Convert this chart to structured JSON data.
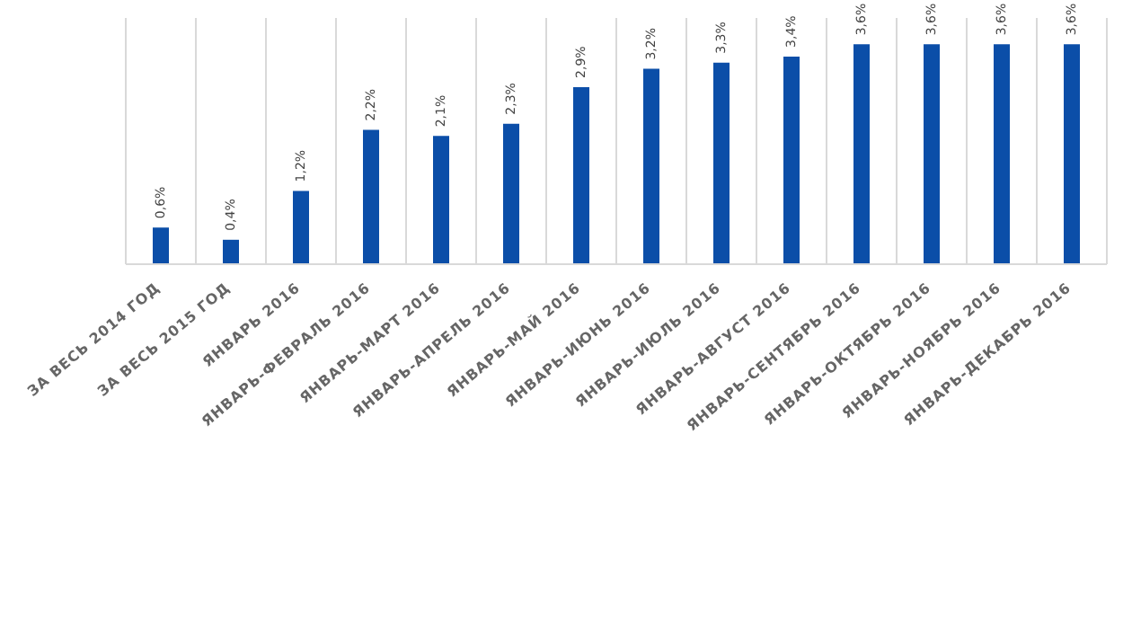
{
  "chart_data": {
    "type": "bar",
    "categories": [
      "ЗА ВЕСЬ 2014 ГОД",
      "ЗА ВЕСЬ 2015 ГОД",
      "ЯНВАРЬ 2016",
      "ЯНВАРЬ-ФЕВРАЛЬ 2016",
      "ЯНВАРЬ-МАРТ 2016",
      "ЯНВАРЬ-АПРЕЛЬ 2016",
      "ЯНВАРЬ-МАЙ 2016",
      "ЯНВАРЬ-ИЮНЬ 2016",
      "ЯНВАРЬ-ИЮЛЬ 2016",
      "ЯНВАРЬ-АВГУСТ 2016",
      "ЯНВАРЬ-СЕНТЯБРЬ 2016",
      "ЯНВАРЬ-ОКТЯБРЬ 2016",
      "ЯНВАРЬ-НОЯБРЬ 2016",
      "ЯНВАРЬ-ДЕКАБРЬ 2016"
    ],
    "values": [
      0.6,
      0.4,
      1.2,
      2.2,
      2.1,
      2.3,
      2.9,
      3.2,
      3.3,
      3.4,
      3.6,
      3.6,
      3.6,
      3.6
    ],
    "value_labels": [
      "0,6%",
      "0,4%",
      "1,2%",
      "2,2%",
      "2,1%",
      "2,3%",
      "2,9%",
      "3,2%",
      "3,3%",
      "3,4%",
      "3,6%",
      "3,6%",
      "3,6%",
      "3,6%"
    ],
    "color": "#0b4ea8",
    "grid": "x"
  }
}
